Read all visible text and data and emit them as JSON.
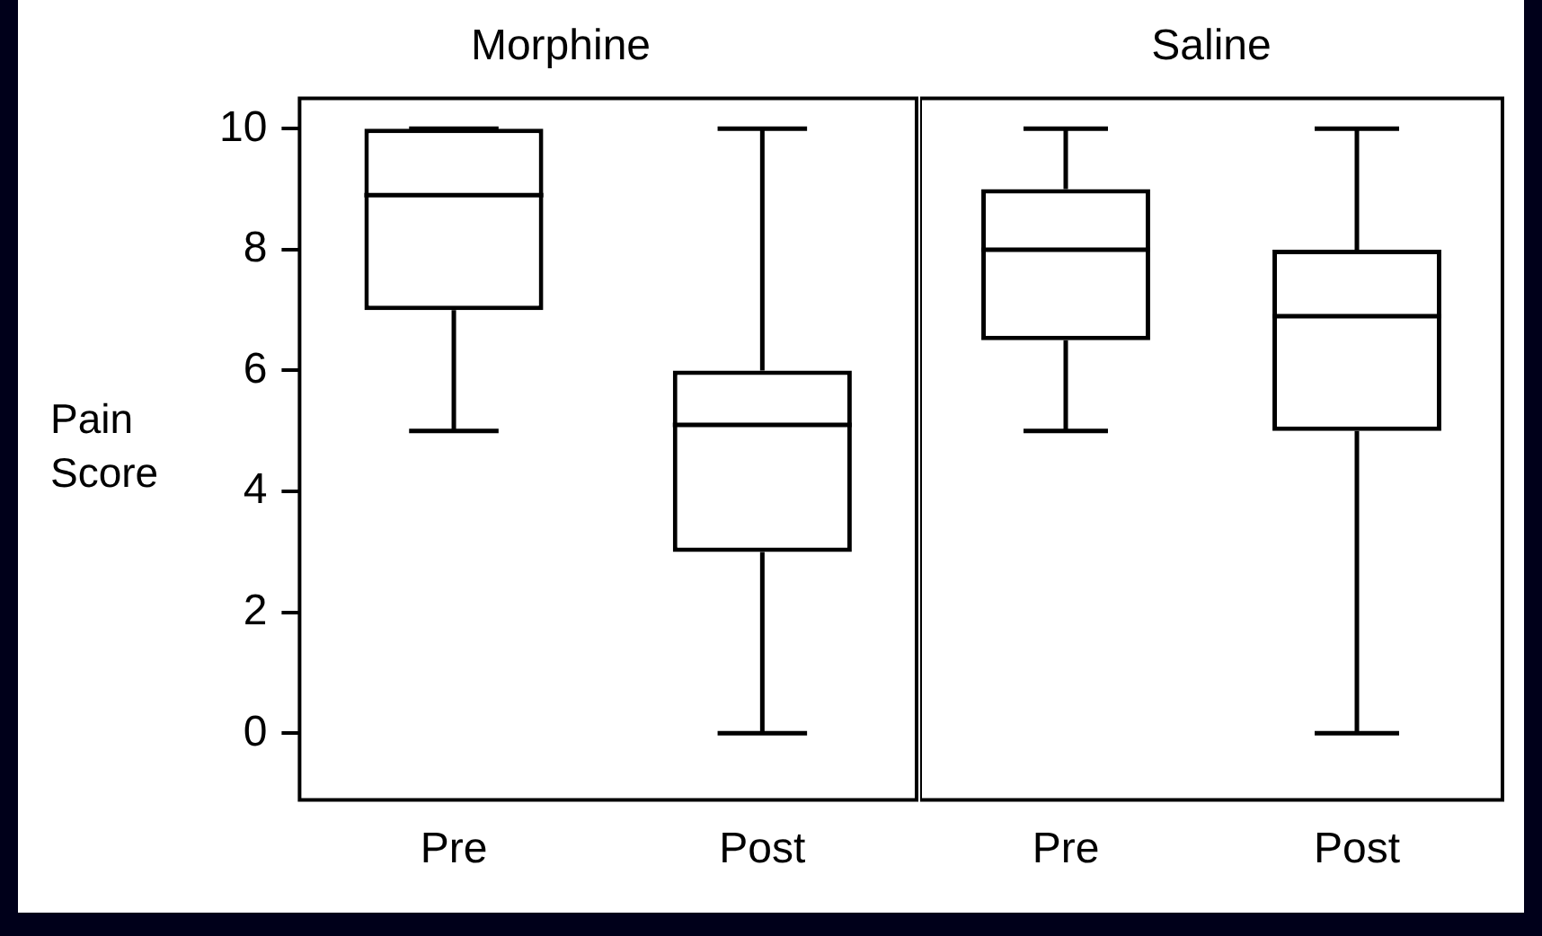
{
  "chart_data": [
    {
      "type": "box",
      "title": "Morphine",
      "ylabel": "Pain Score",
      "categories": [
        "Pre",
        "Post"
      ],
      "boxes": [
        {
          "low": 5,
          "q1": 7,
          "median": 8.9,
          "q3": 10,
          "high": 10
        },
        {
          "low": 0,
          "q1": 3,
          "median": 5.1,
          "q3": 6,
          "high": 10
        }
      ],
      "ylim": [
        -1.1,
        10.5
      ],
      "yticks": [
        0,
        2,
        4,
        6,
        8,
        10
      ]
    },
    {
      "type": "box",
      "title": "Saline",
      "categories": [
        "Pre",
        "Post"
      ],
      "boxes": [
        {
          "low": 5,
          "q1": 6.5,
          "median": 8,
          "q3": 9,
          "high": 10
        },
        {
          "low": 0,
          "q1": 5,
          "median": 6.9,
          "q3": 8,
          "high": 10
        }
      ],
      "ylim": [
        -1.1,
        10.5
      ],
      "yticks": [
        0,
        2,
        4,
        6,
        8,
        10
      ],
      "tick_labels": "x"
    }
  ]
}
